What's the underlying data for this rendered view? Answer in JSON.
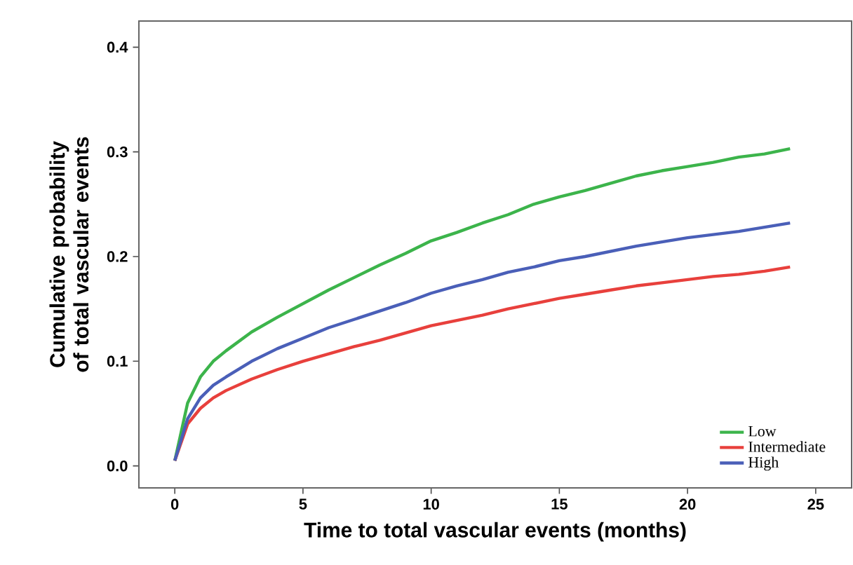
{
  "chart_data": {
    "type": "line",
    "xlabel": "Time to total vascular events (months)",
    "ylabel": "Cumulative probability of total vascular events",
    "xlim": [
      -1.4,
      26.4
    ],
    "ylim": [
      -0.021,
      0.425
    ],
    "xticks": [
      0,
      5,
      10,
      15,
      20,
      25
    ],
    "yticks": [
      {
        "value": 0,
        "label": "0.0"
      },
      0.1,
      0.2,
      0.3,
      0.4
    ],
    "x": [
      0,
      0.5,
      1,
      1.5,
      2,
      3,
      4,
      5,
      6,
      7,
      8,
      9,
      10,
      11,
      12,
      13,
      14,
      15,
      16,
      17,
      18,
      19,
      20,
      21,
      22,
      23,
      24
    ],
    "series": [
      {
        "name": "Low",
        "color": "#3cb44b",
        "values": [
          0.005,
          0.06,
          0.085,
          0.1,
          0.11,
          0.128,
          0.142,
          0.155,
          0.168,
          0.18,
          0.192,
          0.203,
          0.215,
          0.223,
          0.232,
          0.24,
          0.25,
          0.257,
          0.263,
          0.27,
          0.277,
          0.282,
          0.286,
          0.29,
          0.295,
          0.298,
          0.303
        ]
      },
      {
        "name": "Intermediate",
        "color": "#e8403c",
        "values": [
          0.005,
          0.04,
          0.055,
          0.065,
          0.072,
          0.083,
          0.092,
          0.1,
          0.107,
          0.114,
          0.12,
          0.127,
          0.134,
          0.139,
          0.144,
          0.15,
          0.155,
          0.16,
          0.164,
          0.168,
          0.172,
          0.175,
          0.178,
          0.181,
          0.183,
          0.186,
          0.19
        ]
      },
      {
        "name": "High",
        "color": "#4a5fb8",
        "values": [
          0.005,
          0.045,
          0.065,
          0.077,
          0.085,
          0.1,
          0.112,
          0.122,
          0.132,
          0.14,
          0.148,
          0.156,
          0.165,
          0.172,
          0.178,
          0.185,
          0.19,
          0.196,
          0.2,
          0.205,
          0.21,
          0.214,
          0.218,
          0.221,
          0.224,
          0.228,
          0.232
        ]
      }
    ],
    "legend": "bottom right",
    "grid": false,
    "marker": "none",
    "line_style": "solid"
  }
}
